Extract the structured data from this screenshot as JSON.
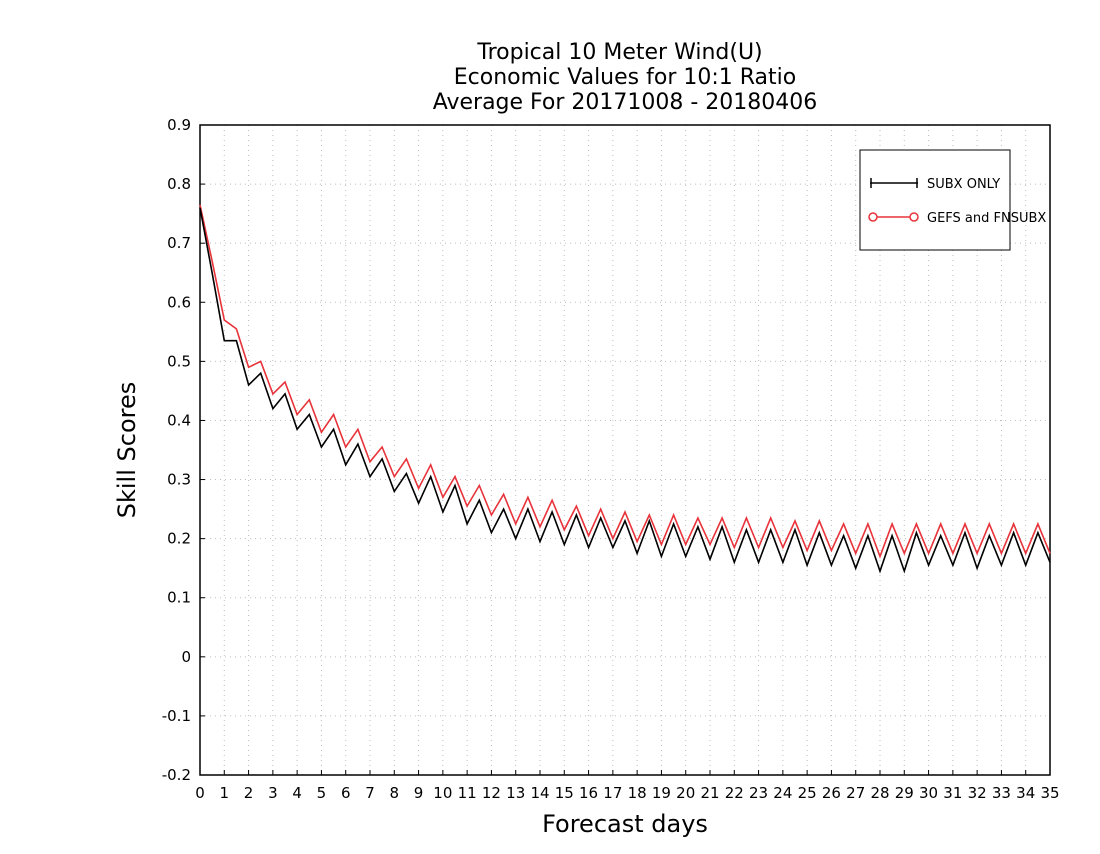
{
  "chart_data": {
    "type": "line",
    "title": [
      "Tropical 10 Meter Wind(U)",
      "Economic Values for 10:1 Ratio",
      "Average For 20171008 - 20180406"
    ],
    "xlabel": "Forecast days",
    "ylabel": "Skill Scores",
    "xlim": [
      0,
      35
    ],
    "ylim": [
      -0.2,
      0.9
    ],
    "x_ticks": [
      "0",
      "1",
      "2",
      "3",
      "4",
      "5",
      "6",
      "7",
      "8",
      "9",
      "10",
      "11",
      "12",
      "13",
      "14",
      "15",
      "16",
      "17",
      "18",
      "19",
      "20",
      "21",
      "22",
      "23",
      "24",
      "25",
      "26",
      "27",
      "28",
      "29",
      "30",
      "31",
      "32",
      "33",
      "34",
      "35"
    ],
    "y_ticks": [
      "0.9",
      "0.8",
      "0.7",
      "0.6",
      "0.5",
      "0.4",
      "0.3",
      "0.2",
      "0.1",
      "0",
      "-0.1",
      "-0.2"
    ],
    "grid": true,
    "legend_position": "top-right",
    "x": [
      0,
      0.5,
      1,
      1.5,
      2,
      2.5,
      3,
      3.5,
      4,
      4.5,
      5,
      5.5,
      6,
      6.5,
      7,
      7.5,
      8,
      8.5,
      9,
      9.5,
      10,
      10.5,
      11,
      11.5,
      12,
      12.5,
      13,
      13.5,
      14,
      14.5,
      15,
      15.5,
      16,
      16.5,
      17,
      17.5,
      18,
      18.5,
      19,
      19.5,
      20,
      20.5,
      21,
      21.5,
      22,
      22.5,
      23,
      23.5,
      24,
      24.5,
      25,
      25.5,
      26,
      26.5,
      27,
      27.5,
      28,
      28.5,
      29,
      29.5,
      30,
      30.5,
      31,
      31.5,
      32,
      32.5,
      33,
      33.5,
      34,
      34.5,
      35
    ],
    "series": [
      {
        "name": "SUBX ONLY",
        "color": "#000000",
        "marker": "plus",
        "values": [
          0.76,
          0.65,
          0.535,
          0.535,
          0.46,
          0.48,
          0.42,
          0.445,
          0.385,
          0.41,
          0.355,
          0.385,
          0.325,
          0.36,
          0.305,
          0.335,
          0.28,
          0.31,
          0.26,
          0.305,
          0.245,
          0.29,
          0.225,
          0.265,
          0.21,
          0.25,
          0.2,
          0.25,
          0.195,
          0.245,
          0.19,
          0.24,
          0.185,
          0.235,
          0.185,
          0.23,
          0.175,
          0.23,
          0.17,
          0.225,
          0.17,
          0.22,
          0.165,
          0.22,
          0.16,
          0.215,
          0.16,
          0.215,
          0.16,
          0.215,
          0.155,
          0.21,
          0.155,
          0.205,
          0.15,
          0.205,
          0.145,
          0.205,
          0.145,
          0.21,
          0.155,
          0.205,
          0.155,
          0.21,
          0.15,
          0.205,
          0.155,
          0.21,
          0.155,
          0.21,
          0.16
        ]
      },
      {
        "name": "GEFS and FNSUBX",
        "color": "#e8333a",
        "marker": "circle",
        "values": [
          0.765,
          0.67,
          0.57,
          0.555,
          0.49,
          0.5,
          0.445,
          0.465,
          0.41,
          0.435,
          0.38,
          0.41,
          0.355,
          0.385,
          0.33,
          0.355,
          0.305,
          0.335,
          0.285,
          0.325,
          0.27,
          0.305,
          0.255,
          0.29,
          0.24,
          0.275,
          0.225,
          0.27,
          0.22,
          0.265,
          0.215,
          0.255,
          0.205,
          0.25,
          0.2,
          0.245,
          0.195,
          0.24,
          0.19,
          0.24,
          0.19,
          0.235,
          0.19,
          0.235,
          0.185,
          0.235,
          0.185,
          0.235,
          0.185,
          0.23,
          0.18,
          0.23,
          0.18,
          0.225,
          0.175,
          0.225,
          0.17,
          0.225,
          0.175,
          0.225,
          0.175,
          0.225,
          0.175,
          0.225,
          0.175,
          0.225,
          0.175,
          0.225,
          0.175,
          0.225,
          0.175
        ]
      }
    ]
  }
}
